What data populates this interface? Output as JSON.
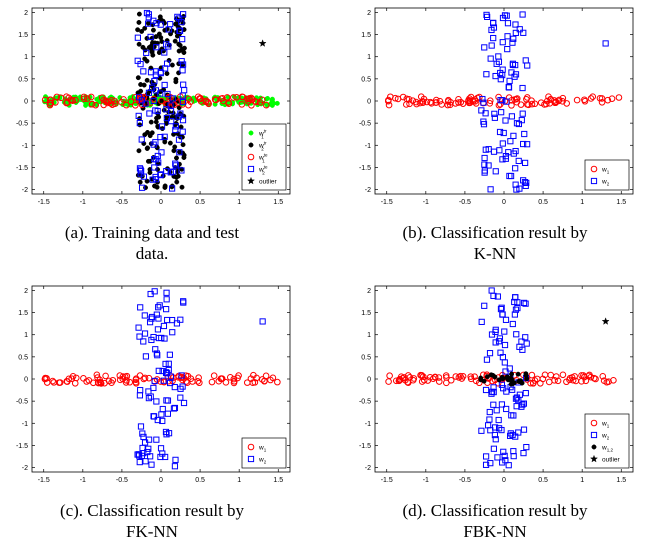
{
  "colors": {
    "class1": "#ff0000",
    "class2": "#0000ff",
    "train1": "#00ff00",
    "train2": "#000000",
    "meta": "#000000",
    "outlier": "#000000"
  },
  "chart_data": [
    {
      "type": "scatter",
      "title": "",
      "xlabel": "",
      "ylabel": "",
      "xlim": [
        -1.65,
        1.65
      ],
      "ylim": [
        -2.1,
        2.1
      ],
      "xticks": [
        "-1.5",
        "-1",
        "-0.5",
        "0",
        "0.5",
        "1",
        "1.5"
      ],
      "yticks": [
        "2",
        "1.5",
        "1",
        "0.5",
        "0",
        "-0.5",
        "-1",
        "-1.5",
        "-2"
      ],
      "legend_position": "lower-right",
      "legend": [
        {
          "base": "w",
          "sub": "1",
          "sup": "tr",
          "marker": "dot",
          "color": "#00ff00"
        },
        {
          "base": "w",
          "sub": "2",
          "sup": "tr",
          "marker": "dot",
          "color": "#000000"
        },
        {
          "base": "w",
          "sub": "1",
          "sup": "te",
          "marker": "circle",
          "color": "#ff0000"
        },
        {
          "base": "w",
          "sub": "2",
          "sup": "te",
          "marker": "square",
          "color": "#0000ff"
        },
        {
          "base": "outlier",
          "sub": "",
          "sup": "",
          "marker": "star",
          "color": "#000000"
        }
      ],
      "outlier": [
        1.3,
        1.3
      ],
      "series": [
        {
          "name": "w1 training",
          "marker": "dot",
          "x_range": [
            -1.5,
            1.5
          ],
          "y_range": [
            -0.1,
            0.1
          ],
          "count": 200
        },
        {
          "name": "w2 training",
          "marker": "dot",
          "x_range": [
            -0.3,
            0.3
          ],
          "y_range": [
            -2,
            2
          ],
          "count": 200
        },
        {
          "name": "w1 test",
          "marker": "circle",
          "x_range": [
            -1.5,
            1.5
          ],
          "y_range": [
            -0.1,
            0.1
          ],
          "count": 100
        },
        {
          "name": "w2 test",
          "marker": "square",
          "x_range": [
            -0.3,
            0.3
          ],
          "y_range": [
            -2,
            2
          ],
          "count": 100
        }
      ],
      "caption": [
        "(a). Training data and test",
        "data."
      ]
    },
    {
      "type": "scatter",
      "title": "",
      "xlabel": "",
      "ylabel": "",
      "xlim": [
        -1.65,
        1.65
      ],
      "ylim": [
        -2.1,
        2.1
      ],
      "xticks": [
        "-1.5",
        "-1",
        "-0.5",
        "0",
        "0.5",
        "1",
        "1.5"
      ],
      "yticks": [
        "2",
        "1.5",
        "1",
        "0.5",
        "0",
        "-0.5",
        "-1",
        "-1.5",
        "-2"
      ],
      "legend_position": "lower-right",
      "legend": [
        {
          "base": "w",
          "sub": "1",
          "sup": "",
          "marker": "circle",
          "color": "#ff0000"
        },
        {
          "base": "w",
          "sub": "2",
          "sup": "",
          "marker": "square",
          "color": "#0000ff"
        }
      ],
      "outlier": [
        1.3,
        1.3
      ],
      "outlier_class": "w2",
      "series": [
        {
          "name": "w1",
          "marker": "circle",
          "x_range": [
            -1.5,
            1.5
          ],
          "y_range": [
            -0.1,
            0.1
          ],
          "count": 100
        },
        {
          "name": "w2",
          "marker": "square",
          "x_range": [
            -0.3,
            0.3
          ],
          "y_range": [
            -2,
            2
          ],
          "count": 100
        }
      ],
      "caption": [
        "(b). Classification result by",
        "K-NN"
      ]
    },
    {
      "type": "scatter",
      "title": "",
      "xlabel": "",
      "ylabel": "",
      "xlim": [
        -1.65,
        1.65
      ],
      "ylim": [
        -2.1,
        2.1
      ],
      "xticks": [
        "-1.5",
        "-1",
        "-0.5",
        "0",
        "0.5",
        "1",
        "1.5"
      ],
      "yticks": [
        "2",
        "1.5",
        "1",
        "0.5",
        "0",
        "-0.5",
        "-1",
        "-1.5",
        "-2"
      ],
      "legend_position": "lower-right",
      "legend": [
        {
          "base": "w",
          "sub": "1",
          "sup": "",
          "marker": "circle",
          "color": "#ff0000"
        },
        {
          "base": "w",
          "sub": "2",
          "sup": "",
          "marker": "square",
          "color": "#0000ff"
        }
      ],
      "outlier": [
        1.3,
        1.3
      ],
      "outlier_class": "w2",
      "series": [
        {
          "name": "w1",
          "marker": "circle",
          "x_range": [
            -1.5,
            1.5
          ],
          "y_range": [
            -0.1,
            0.1
          ],
          "count": 100
        },
        {
          "name": "w2",
          "marker": "square",
          "x_range": [
            -0.3,
            0.3
          ],
          "y_range": [
            -2,
            2
          ],
          "count": 100
        }
      ],
      "caption": [
        "(c). Classification result by",
        "FK-NN"
      ]
    },
    {
      "type": "scatter",
      "title": "",
      "xlabel": "",
      "ylabel": "",
      "xlim": [
        -1.65,
        1.65
      ],
      "ylim": [
        -2.1,
        2.1
      ],
      "xticks": [
        "-1.5",
        "-1",
        "-0.5",
        "0",
        "0.5",
        "1",
        "1.5"
      ],
      "yticks": [
        "2",
        "1.5",
        "1",
        "0.5",
        "0",
        "-0.5",
        "-1",
        "-1.5",
        "-2"
      ],
      "legend_position": "lower-right",
      "legend": [
        {
          "base": "w",
          "sub": "1",
          "sup": "",
          "marker": "circle",
          "color": "#ff0000"
        },
        {
          "base": "w",
          "sub": "2",
          "sup": "",
          "marker": "square",
          "color": "#0000ff"
        },
        {
          "base": "w",
          "sub": "1,2",
          "sup": "",
          "marker": "dot",
          "color": "#000000"
        },
        {
          "base": "outlier",
          "sub": "",
          "sup": "",
          "marker": "star",
          "color": "#000000"
        }
      ],
      "outlier": [
        1.3,
        1.3
      ],
      "outlier_class": "outlier",
      "series": [
        {
          "name": "w1",
          "marker": "circle",
          "x_range": [
            -1.5,
            1.5
          ],
          "y_range": [
            -0.1,
            0.1
          ],
          "count": 100
        },
        {
          "name": "w2",
          "marker": "square",
          "x_range": [
            -0.3,
            0.3
          ],
          "y_range": [
            -2,
            2
          ],
          "count": 100
        },
        {
          "name": "w1,2",
          "marker": "dot",
          "x_range": [
            -0.3,
            0.3
          ],
          "y_range": [
            -0.12,
            0.12
          ],
          "count": 30
        }
      ],
      "caption": [
        "(d). Classification result by",
        "FBK-NN"
      ]
    }
  ]
}
